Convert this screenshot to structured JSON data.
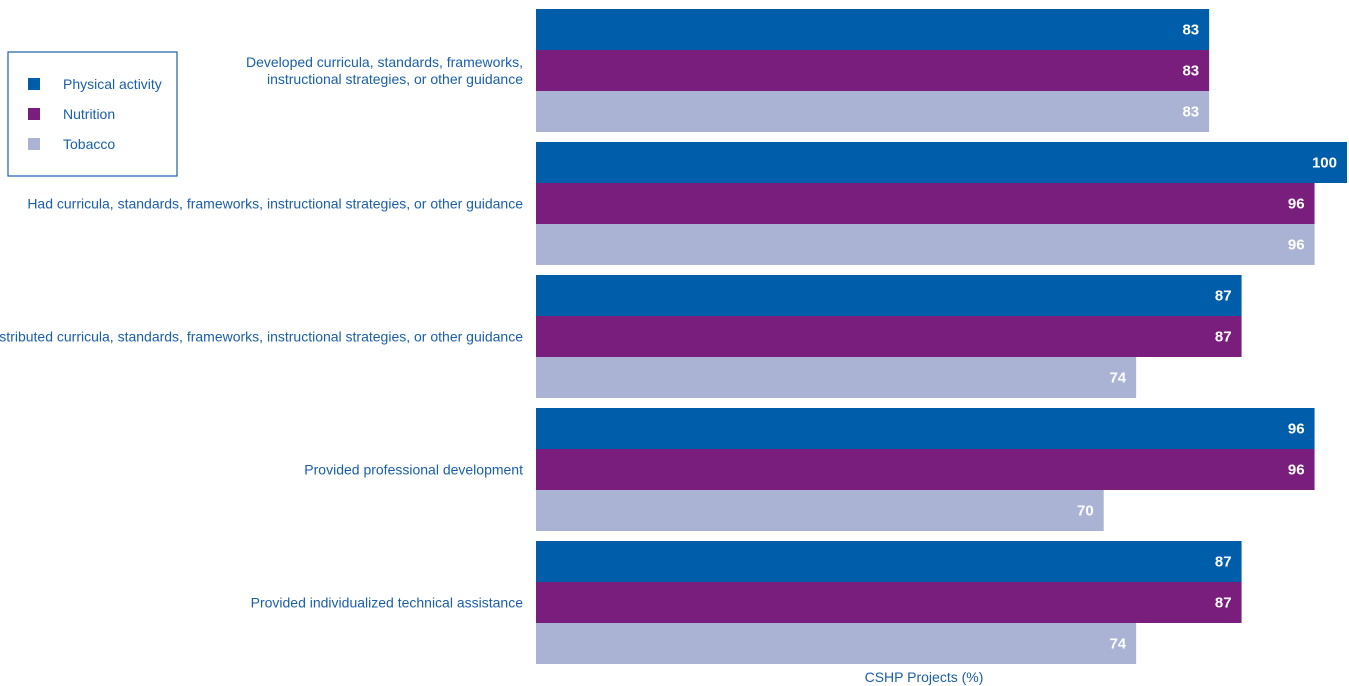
{
  "chart_data": {
    "type": "bar",
    "orientation": "horizontal",
    "title": "",
    "xlabel": "CSHP Projects (%)",
    "ylabel": "",
    "xlim": [
      0,
      100
    ],
    "grid": false,
    "legend_position": "top-left",
    "categories": [
      [
        "Developed curricula, standards, frameworks,",
        "instructional strategies, or other guidance"
      ],
      [
        "Had curricula, standards, frameworks, instructional strategies, or other guidance"
      ],
      [
        "Distributed curricula, standards, frameworks, instructional strategies, or other guidance"
      ],
      [
        "Provided professional development"
      ],
      [
        "Provided individualized technical assistance"
      ]
    ],
    "series": [
      {
        "name": "Physical activity",
        "color": "#005daa",
        "values": [
          83,
          100,
          87,
          96,
          87
        ]
      },
      {
        "name": "Nutrition",
        "color": "#7a1e7e",
        "values": [
          83,
          96,
          87,
          96,
          87
        ]
      },
      {
        "name": "Tobacco",
        "color": "#aab3d3",
        "values": [
          83,
          96,
          74,
          70,
          74
        ]
      }
    ]
  }
}
